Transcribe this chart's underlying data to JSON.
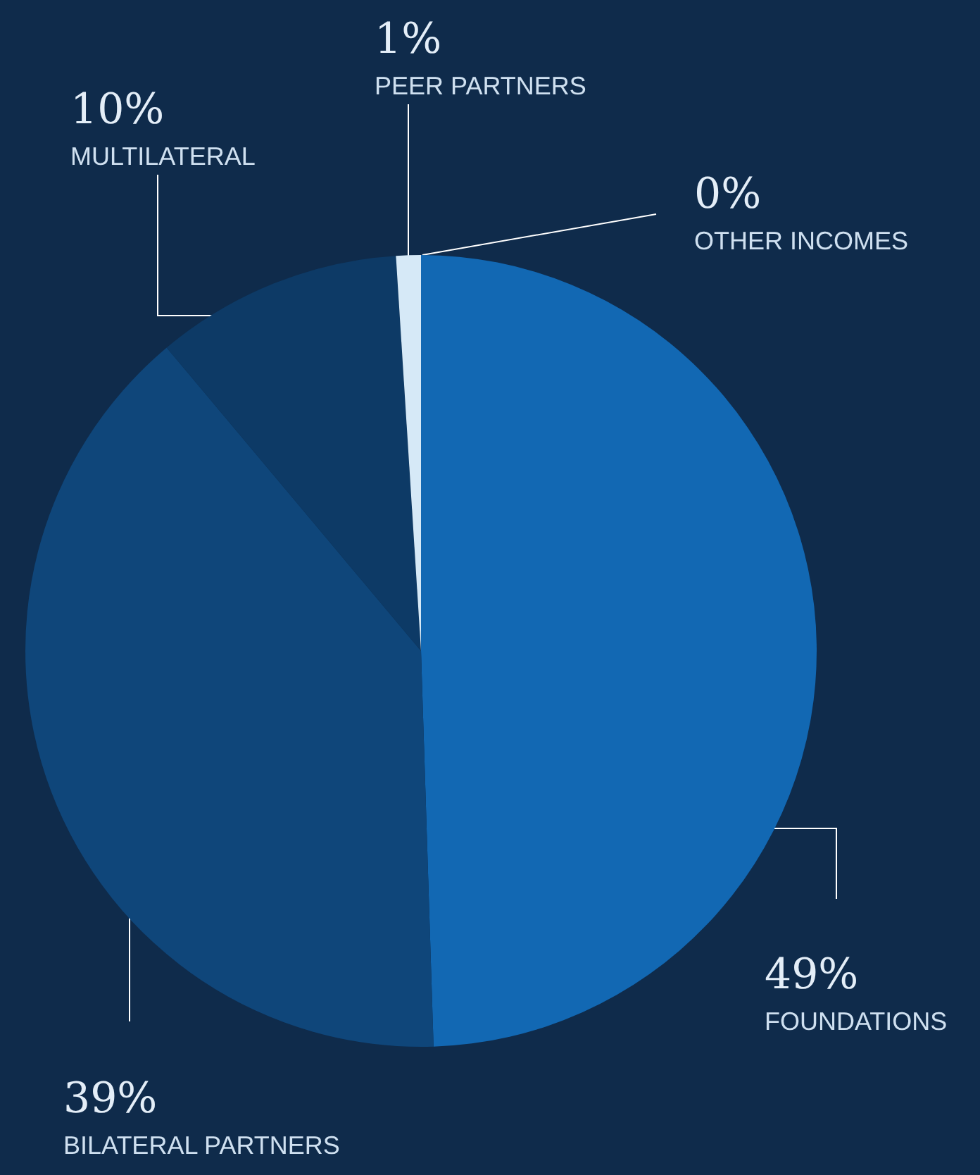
{
  "chart_data": {
    "type": "pie",
    "categories": [
      "FOUNDATIONS",
      "BILATERAL PARTNERS",
      "MULTILATERAL",
      "PEER PARTNERS",
      "OTHER INCOMES"
    ],
    "values": [
      49,
      39,
      10,
      1,
      0
    ],
    "value_labels": [
      "49%",
      "39%",
      "10%",
      "1%",
      "0%"
    ],
    "colors": [
      "#1268b3",
      "#0f467a",
      "#0d3a66",
      "#d6e9f7",
      "#ffffff"
    ]
  }
}
